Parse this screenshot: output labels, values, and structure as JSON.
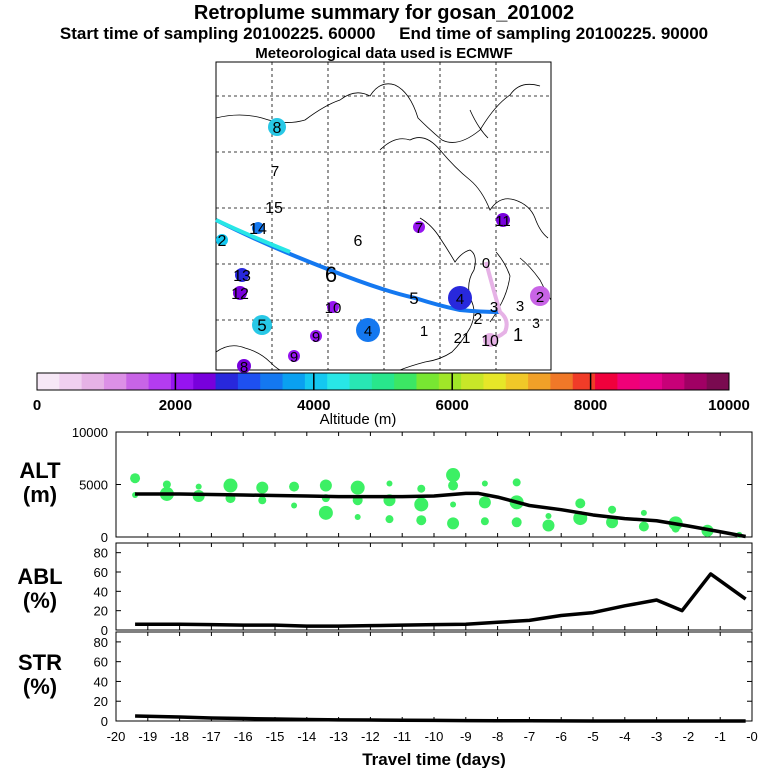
{
  "header": {
    "title": "Retroplume summary for gosan_201002",
    "start_label": "Start time of sampling 20100225. 60000",
    "end_label": "End time of sampling 20100225. 90000",
    "met_label": "Meteorological data used is ECMWF"
  },
  "colorbar": {
    "ticks": [
      "0",
      "2000",
      "4000",
      "6000",
      "8000",
      "10000"
    ],
    "label": "Altitude (m)",
    "colors": [
      "#f6e8f6",
      "#f0cff0",
      "#e6b2e6",
      "#dc90e6",
      "#c864e6",
      "#b43cf0",
      "#9614f0",
      "#7800dc",
      "#2828dc",
      "#1e50f0",
      "#1478f0",
      "#0aa0f0",
      "#14c8f0",
      "#28e6e6",
      "#28e6b4",
      "#28e68c",
      "#3ce664",
      "#78e632",
      "#a0e628",
      "#c8e628",
      "#e6e628",
      "#f0c828",
      "#f0a028",
      "#f07828",
      "#f03c28",
      "#f0003c",
      "#f00078",
      "#e6008c",
      "#c80078",
      "#a00064",
      "#7a0a50"
    ]
  },
  "map": {
    "track_numbers": [
      "8",
      "7",
      "15",
      "14",
      "13",
      "12",
      "10",
      "9",
      "6",
      "5",
      "4",
      "3",
      "2",
      "1",
      "0",
      "7",
      "6",
      "5",
      "4",
      "3",
      "2",
      "1",
      "11",
      "21",
      "10",
      "9",
      "8",
      "2",
      "3"
    ]
  },
  "chart_data": [
    {
      "type": "line",
      "panel": "ALT",
      "ylabel": "ALT (m)",
      "ylim": [
        0,
        10000
      ],
      "yticks": [
        "10000",
        "5000",
        "0"
      ],
      "x": [
        -19.4,
        -18,
        -17,
        -16,
        -15,
        -14,
        -13,
        -12,
        -11,
        -10,
        -9,
        -8.6,
        -8,
        -7,
        -6,
        -5,
        -4,
        -3,
        -2,
        -1,
        -0.2
      ],
      "series": [
        {
          "name": "median altitude",
          "values": [
            4100,
            4100,
            4050,
            4000,
            3950,
            3900,
            3850,
            3850,
            3850,
            3900,
            4150,
            4150,
            3800,
            3000,
            2600,
            2100,
            1750,
            1550,
            1050,
            500,
            50
          ]
        }
      ],
      "scatter": [
        {
          "x": -19.4,
          "y": 4000
        },
        {
          "x": -19.4,
          "y": 5600
        },
        {
          "x": -18.4,
          "y": 4100
        },
        {
          "x": -18.4,
          "y": 5000
        },
        {
          "x": -17.4,
          "y": 3900
        },
        {
          "x": -17.4,
          "y": 4800
        },
        {
          "x": -16.4,
          "y": 3700
        },
        {
          "x": -16.4,
          "y": 4900
        },
        {
          "x": -15.4,
          "y": 3500
        },
        {
          "x": -15.4,
          "y": 4700
        },
        {
          "x": -14.4,
          "y": 3000
        },
        {
          "x": -14.4,
          "y": 4800
        },
        {
          "x": -13.4,
          "y": 2300
        },
        {
          "x": -13.4,
          "y": 3700
        },
        {
          "x": -13.4,
          "y": 4900
        },
        {
          "x": -12.4,
          "y": 1900
        },
        {
          "x": -12.4,
          "y": 3500
        },
        {
          "x": -12.4,
          "y": 4700
        },
        {
          "x": -11.4,
          "y": 1700
        },
        {
          "x": -11.4,
          "y": 3500
        },
        {
          "x": -11.4,
          "y": 5100
        },
        {
          "x": -10.4,
          "y": 1600
        },
        {
          "x": -10.4,
          "y": 3100
        },
        {
          "x": -10.4,
          "y": 4600
        },
        {
          "x": -9.4,
          "y": 1300
        },
        {
          "x": -9.4,
          "y": 3100
        },
        {
          "x": -9.4,
          "y": 4900
        },
        {
          "x": -9.4,
          "y": 5900
        },
        {
          "x": -8.4,
          "y": 1500
        },
        {
          "x": -8.4,
          "y": 3300
        },
        {
          "x": -8.4,
          "y": 5100
        },
        {
          "x": -7.4,
          "y": 1400
        },
        {
          "x": -7.4,
          "y": 3300
        },
        {
          "x": -7.4,
          "y": 5200
        },
        {
          "x": -6.4,
          "y": 1100
        },
        {
          "x": -6.4,
          "y": 2000
        },
        {
          "x": -5.4,
          "y": 3200
        },
        {
          "x": -5.4,
          "y": 1800
        },
        {
          "x": -4.4,
          "y": 2600
        },
        {
          "x": -4.4,
          "y": 1400
        },
        {
          "x": -3.4,
          "y": 2300
        },
        {
          "x": -3.4,
          "y": 1000
        },
        {
          "x": -2.4,
          "y": 1300
        },
        {
          "x": -2.4,
          "y": 800
        },
        {
          "x": -1.4,
          "y": 600
        },
        {
          "x": -0.4,
          "y": 200
        }
      ]
    },
    {
      "type": "line",
      "panel": "ABL",
      "ylabel": "ABL (%)",
      "ylim": [
        0,
        90
      ],
      "yticks": [
        "80",
        "60",
        "40",
        "20",
        "0"
      ],
      "x": [
        -19.4,
        -18,
        -17,
        -16,
        -15,
        -14,
        -13,
        -12,
        -11,
        -10,
        -9,
        -8,
        -7,
        -6,
        -5,
        -4,
        -3,
        -2.2,
        -1.3,
        -0.2
      ],
      "series": [
        {
          "name": "ABL fraction",
          "values": [
            6,
            6,
            5.5,
            5,
            5,
            4,
            4,
            4.5,
            5,
            5.5,
            6,
            8,
            10,
            15,
            18,
            25,
            31,
            20,
            58,
            32
          ]
        }
      ]
    },
    {
      "type": "line",
      "panel": "STR",
      "ylabel": "STR (%)",
      "ylim": [
        0,
        90
      ],
      "yticks": [
        "80",
        "60",
        "40",
        "20",
        "0"
      ],
      "x": [
        -19.4,
        -18,
        -17,
        -16,
        -15,
        -14,
        -13,
        -12,
        -11,
        -10,
        -9,
        -8,
        -7,
        -6,
        -5,
        -4,
        -3,
        -2,
        -1,
        -0.2
      ],
      "series": [
        {
          "name": "stratosphere fraction",
          "values": [
            5,
            4,
            3,
            2.5,
            2,
            1.5,
            1.2,
            1,
            0.8,
            0.6,
            0.4,
            0.3,
            0.2,
            0.1,
            0,
            0,
            0,
            0,
            0,
            0
          ]
        }
      ],
      "xlabel": "Travel time (days)",
      "xlim": [
        -20,
        0
      ],
      "xticks": [
        "-20",
        "-19",
        "-18",
        "-17",
        "-16",
        "-15",
        "-14",
        "-13",
        "-12",
        "-11",
        "-10",
        "-9",
        "-8",
        "-7",
        "-6",
        "-5",
        "-4",
        "-3",
        "-2",
        "-1",
        "-0"
      ]
    }
  ]
}
